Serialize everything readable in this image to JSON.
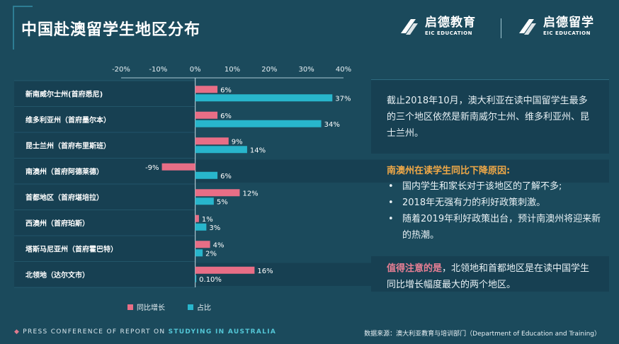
{
  "title": "中国赴澳留学生地区分布",
  "logos": [
    {
      "cn": "启德教育",
      "en": "EIC EDUCATION"
    },
    {
      "cn": "启德留学",
      "en": "EIC EDUCATION"
    }
  ],
  "colors": {
    "growth": "#e86e86",
    "share": "#28b6cc",
    "background": "#1b4a5c",
    "accent_orange": "#f0a847"
  },
  "chart_data": {
    "type": "bar",
    "orientation": "horizontal",
    "xlim": [
      -20,
      40
    ],
    "x_ticks": [
      "-20%",
      "-10%",
      "0%",
      "10%",
      "20%",
      "30%",
      "40%"
    ],
    "categories": [
      "新南威尔士州(首府悉尼)",
      "维多利亚州（首府墨尔本）",
      "昆士兰州（首府布里斯班）",
      "南澳州（首府阿德莱德）",
      "首都地区（首府堪培拉）",
      "西澳州（首府珀斯）",
      "塔斯马尼亚州（首府霍巴特）",
      "北领地（达尔文市）"
    ],
    "series": [
      {
        "name": "同比增长",
        "values": [
          6,
          6,
          9,
          -9,
          12,
          1,
          4,
          16
        ],
        "labels": [
          "6%",
          "6%",
          "9%",
          "-9%",
          "12%",
          "1%",
          "4%",
          "16%"
        ]
      },
      {
        "name": "占比",
        "values": [
          37,
          34,
          14,
          6,
          5,
          3,
          2,
          0.1
        ],
        "labels": [
          "37%",
          "34%",
          "14%",
          "6%",
          "5%",
          "3%",
          "2%",
          "0.10%"
        ]
      }
    ],
    "legend": "bottom"
  },
  "panel1": {
    "text": "截止2018年10月，澳大利亚在读中国留学生最多的三个地区依然是新南威尔士州、维多利亚州、昆士兰州。"
  },
  "panel2": {
    "heading": "南澳州在读学生同比下降原因:",
    "bullets": [
      "国内学生和家长对于该地区的了解不多;",
      "2018年无强有力的利好政策刺激。",
      "随着2019年利好政策出台，预计南澳州将迎来新的热潮。"
    ]
  },
  "panel3": {
    "highlight": "值得注意的是",
    "text": "，北领地和首都地区是在读中国学生同比增长幅度最大的两个地区。"
  },
  "footer": {
    "left_prefix": "PRESS CONFERENCE OF REPORT ON",
    "left_highlight": "STUDYING IN AUSTRALIA",
    "right": "数据来源：澳大利亚教育与培训部门（Department of Education and Training）"
  }
}
